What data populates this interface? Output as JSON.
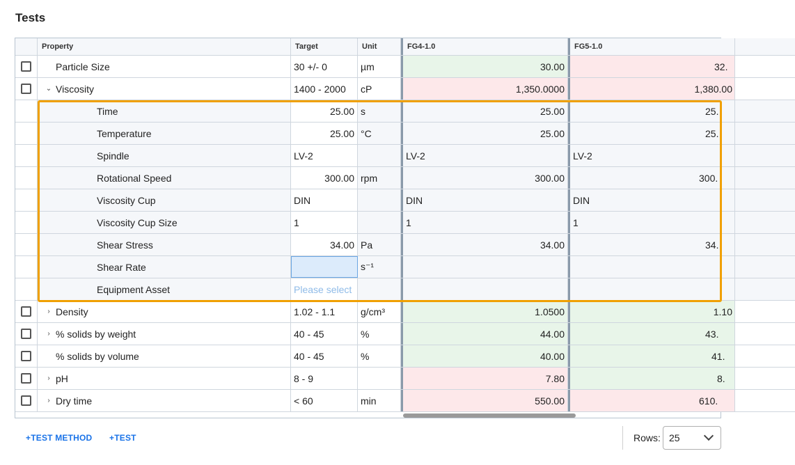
{
  "title": "Tests",
  "columns": {
    "property": "Property",
    "target": "Target",
    "unit": "Unit",
    "fg4": "FG4-1.0",
    "fg5": "FG5-1.0"
  },
  "rows": [
    {
      "property": "Particle Size",
      "target": "30 +/- 0",
      "unit": "µm",
      "fg4": "30.00",
      "fg5": "32.",
      "fg4_status": "green",
      "fg5_status": "red",
      "expander": "none"
    },
    {
      "property": "Viscosity",
      "target": "1400 - 2000",
      "unit": "cP",
      "fg4": "1,350.0000",
      "fg5": "1,380.00",
      "fg4_status": "red",
      "fg5_status": "red",
      "expander": "expanded"
    }
  ],
  "children": [
    {
      "property": "Time",
      "target": "25.00",
      "unit": "s",
      "fg4": "25.00",
      "fg5": "25."
    },
    {
      "property": "Temperature",
      "target": "25.00",
      "unit": "°C",
      "fg4": "25.00",
      "fg5": "25."
    },
    {
      "property": "Spindle",
      "target": "LV-2",
      "unit": "",
      "fg4": "LV-2",
      "fg5": "LV-2"
    },
    {
      "property": "Rotational Speed",
      "target": "300.00",
      "unit": "rpm",
      "fg4": "300.00",
      "fg5": "300."
    },
    {
      "property": "Viscosity Cup",
      "target": "DIN",
      "unit": "",
      "fg4": "DIN",
      "fg5": "DIN"
    },
    {
      "property": "Viscosity Cup Size",
      "target": "1",
      "unit": "",
      "fg4": "1",
      "fg5": "1"
    },
    {
      "property": "Shear Stress",
      "target": "34.00",
      "unit": "Pa",
      "fg4": "34.00",
      "fg5": "34."
    },
    {
      "property": "Shear Rate",
      "target": "",
      "unit": "s⁻¹",
      "fg4": "",
      "fg5": ""
    },
    {
      "property": "Equipment Asset",
      "target_placeholder": "Please select",
      "unit": "",
      "fg4": "",
      "fg5": ""
    }
  ],
  "rows_after": [
    {
      "property": "Density",
      "target": "1.02 - 1.1",
      "unit": "g/cm³",
      "fg4": "1.0500",
      "fg5": "1.10",
      "fg4_status": "green",
      "fg5_status": "green",
      "expander": "collapsed"
    },
    {
      "property": "% solids by weight",
      "target": "40 - 45",
      "unit": "%",
      "fg4": "44.00",
      "fg5": "43.",
      "fg4_status": "green",
      "fg5_status": "green",
      "expander": "collapsed"
    },
    {
      "property": "% solids by volume",
      "target": "40 - 45",
      "unit": "%",
      "fg4": "40.00",
      "fg5": "41.",
      "fg4_status": "green",
      "fg5_status": "green",
      "expander": "none"
    },
    {
      "property": "pH",
      "target": "8 - 9",
      "unit": "",
      "fg4": "7.80",
      "fg5": "8.",
      "fg4_status": "red",
      "fg5_status": "green",
      "expander": "collapsed"
    },
    {
      "property": "Dry time",
      "target": "< 60",
      "unit": "min",
      "fg4": "550.00",
      "fg5": "610.",
      "fg4_status": "red",
      "fg5_status": "red",
      "expander": "collapsed"
    }
  ],
  "footer": {
    "add_test_method": "+TEST METHOD",
    "add_test": "+TEST",
    "rows_label": "Rows:",
    "rows_value": "25"
  }
}
